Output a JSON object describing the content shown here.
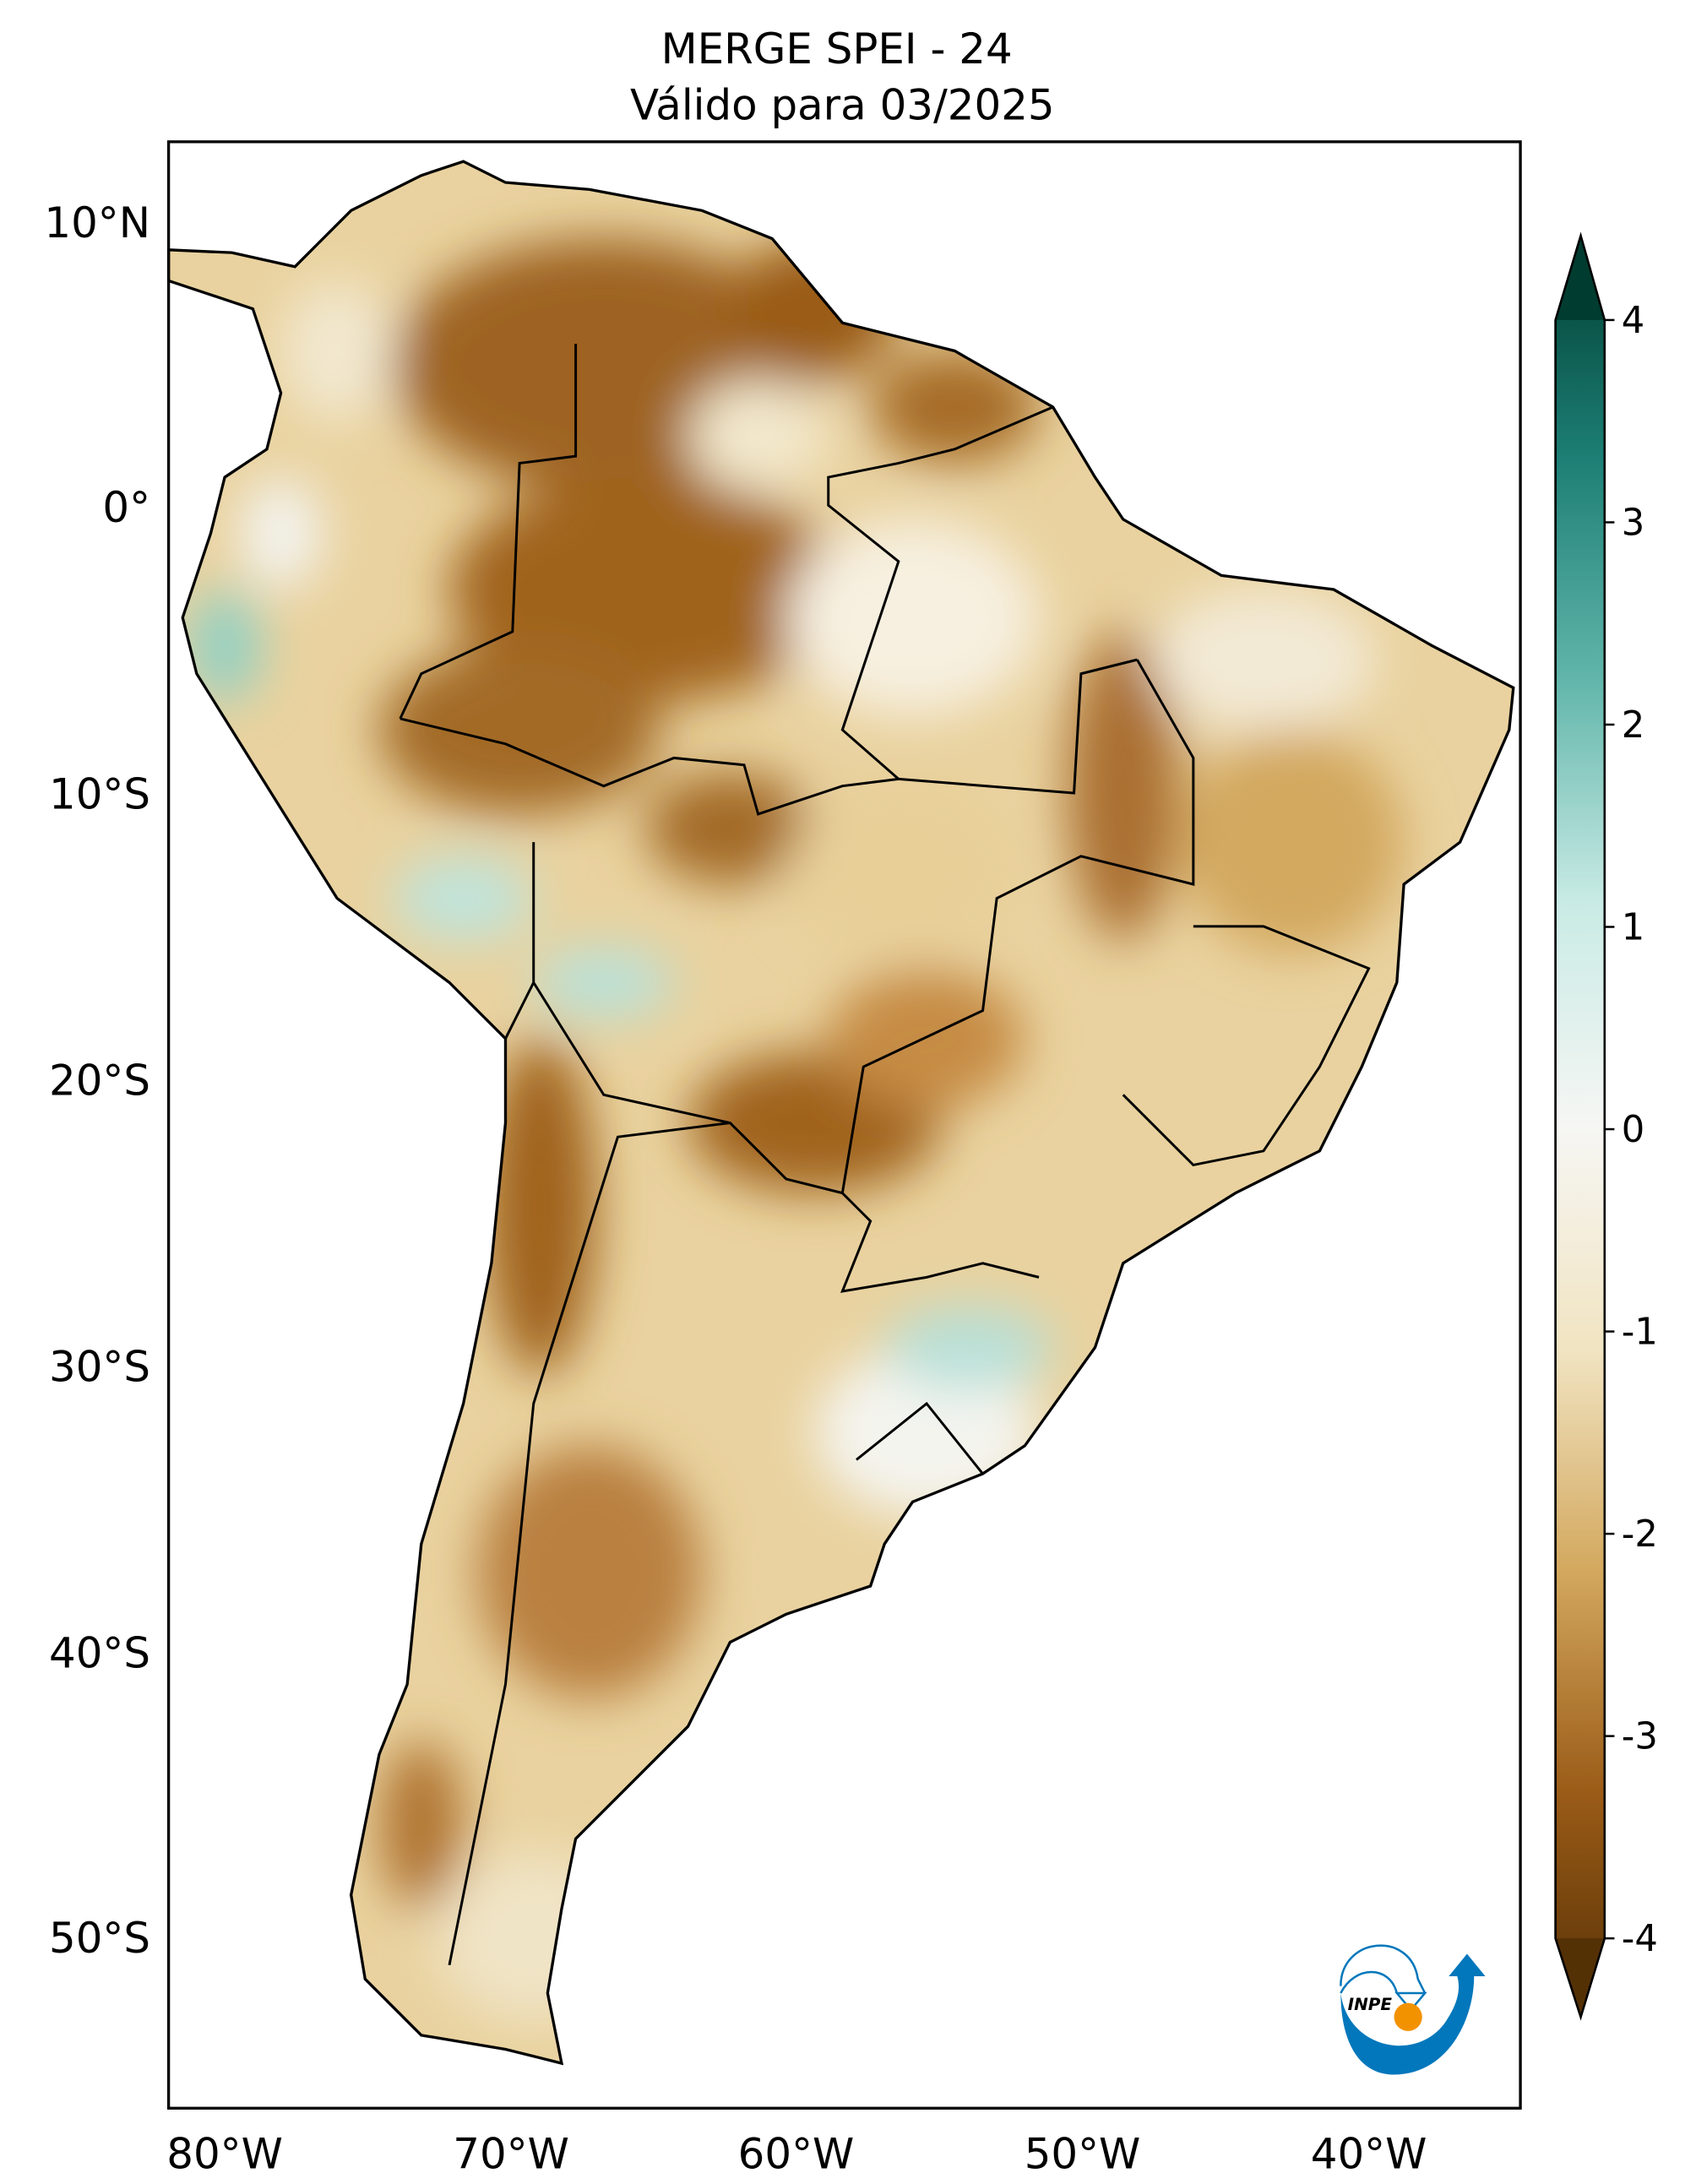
{
  "title": {
    "line1": "MERGE   SPEI - 24",
    "line2": "Válido para 03/2025"
  },
  "longitude_labels": [
    "80°W",
    "70°W",
    "60°W",
    "50°W",
    "40°W"
  ],
  "latitude_labels": [
    "10°N",
    "0°",
    "10°S",
    "20°S",
    "30°S",
    "40°S",
    "50°S"
  ],
  "colorbar": {
    "ticks": [
      "4",
      "3",
      "2",
      "1",
      "0",
      "-1",
      "-2",
      "-3",
      "-4"
    ],
    "colors": {
      "-4": "#543005",
      "-3": "#9a5b17",
      "-2": "#d3a85e",
      "-1": "#f1e4c2",
      "0": "#f6f6f4",
      "1": "#c9ebe5",
      "2": "#62b6ab",
      "3": "#1d7f75",
      "4": "#003c30"
    }
  },
  "logo": {
    "text": "INPE",
    "blue": "#0277bb",
    "orange": "#f39200"
  }
}
